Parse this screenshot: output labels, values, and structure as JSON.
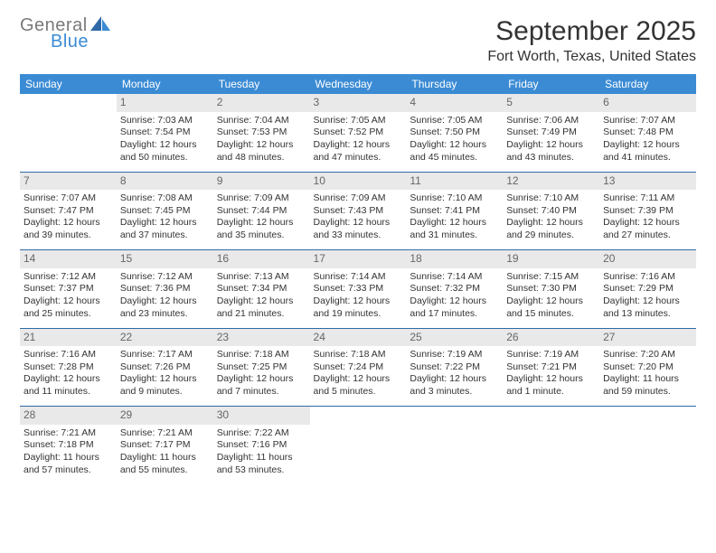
{
  "logo": {
    "text1": "General",
    "text2": "Blue"
  },
  "header": {
    "month_title": "September 2025",
    "location": "Fort Worth, Texas, United States"
  },
  "colors": {
    "header_bg": "#3b8bd4",
    "header_text": "#ffffff",
    "daynum_bg": "#e9e9e9",
    "daynum_text": "#666666",
    "text": "#333333",
    "sep": "#2f6aa8"
  },
  "fonts": {
    "title_size_pt": 22,
    "location_size_pt": 12,
    "cell_size_pt": 8
  },
  "day_labels": [
    "Sunday",
    "Monday",
    "Tuesday",
    "Wednesday",
    "Thursday",
    "Friday",
    "Saturday"
  ],
  "weeks": [
    [
      null,
      {
        "n": "1",
        "sr": "Sunrise: 7:03 AM",
        "ss": "Sunset: 7:54 PM",
        "d1": "Daylight: 12 hours",
        "d2": "and 50 minutes."
      },
      {
        "n": "2",
        "sr": "Sunrise: 7:04 AM",
        "ss": "Sunset: 7:53 PM",
        "d1": "Daylight: 12 hours",
        "d2": "and 48 minutes."
      },
      {
        "n": "3",
        "sr": "Sunrise: 7:05 AM",
        "ss": "Sunset: 7:52 PM",
        "d1": "Daylight: 12 hours",
        "d2": "and 47 minutes."
      },
      {
        "n": "4",
        "sr": "Sunrise: 7:05 AM",
        "ss": "Sunset: 7:50 PM",
        "d1": "Daylight: 12 hours",
        "d2": "and 45 minutes."
      },
      {
        "n": "5",
        "sr": "Sunrise: 7:06 AM",
        "ss": "Sunset: 7:49 PM",
        "d1": "Daylight: 12 hours",
        "d2": "and 43 minutes."
      },
      {
        "n": "6",
        "sr": "Sunrise: 7:07 AM",
        "ss": "Sunset: 7:48 PM",
        "d1": "Daylight: 12 hours",
        "d2": "and 41 minutes."
      }
    ],
    [
      {
        "n": "7",
        "sr": "Sunrise: 7:07 AM",
        "ss": "Sunset: 7:47 PM",
        "d1": "Daylight: 12 hours",
        "d2": "and 39 minutes."
      },
      {
        "n": "8",
        "sr": "Sunrise: 7:08 AM",
        "ss": "Sunset: 7:45 PM",
        "d1": "Daylight: 12 hours",
        "d2": "and 37 minutes."
      },
      {
        "n": "9",
        "sr": "Sunrise: 7:09 AM",
        "ss": "Sunset: 7:44 PM",
        "d1": "Daylight: 12 hours",
        "d2": "and 35 minutes."
      },
      {
        "n": "10",
        "sr": "Sunrise: 7:09 AM",
        "ss": "Sunset: 7:43 PM",
        "d1": "Daylight: 12 hours",
        "d2": "and 33 minutes."
      },
      {
        "n": "11",
        "sr": "Sunrise: 7:10 AM",
        "ss": "Sunset: 7:41 PM",
        "d1": "Daylight: 12 hours",
        "d2": "and 31 minutes."
      },
      {
        "n": "12",
        "sr": "Sunrise: 7:10 AM",
        "ss": "Sunset: 7:40 PM",
        "d1": "Daylight: 12 hours",
        "d2": "and 29 minutes."
      },
      {
        "n": "13",
        "sr": "Sunrise: 7:11 AM",
        "ss": "Sunset: 7:39 PM",
        "d1": "Daylight: 12 hours",
        "d2": "and 27 minutes."
      }
    ],
    [
      {
        "n": "14",
        "sr": "Sunrise: 7:12 AM",
        "ss": "Sunset: 7:37 PM",
        "d1": "Daylight: 12 hours",
        "d2": "and 25 minutes."
      },
      {
        "n": "15",
        "sr": "Sunrise: 7:12 AM",
        "ss": "Sunset: 7:36 PM",
        "d1": "Daylight: 12 hours",
        "d2": "and 23 minutes."
      },
      {
        "n": "16",
        "sr": "Sunrise: 7:13 AM",
        "ss": "Sunset: 7:34 PM",
        "d1": "Daylight: 12 hours",
        "d2": "and 21 minutes."
      },
      {
        "n": "17",
        "sr": "Sunrise: 7:14 AM",
        "ss": "Sunset: 7:33 PM",
        "d1": "Daylight: 12 hours",
        "d2": "and 19 minutes."
      },
      {
        "n": "18",
        "sr": "Sunrise: 7:14 AM",
        "ss": "Sunset: 7:32 PM",
        "d1": "Daylight: 12 hours",
        "d2": "and 17 minutes."
      },
      {
        "n": "19",
        "sr": "Sunrise: 7:15 AM",
        "ss": "Sunset: 7:30 PM",
        "d1": "Daylight: 12 hours",
        "d2": "and 15 minutes."
      },
      {
        "n": "20",
        "sr": "Sunrise: 7:16 AM",
        "ss": "Sunset: 7:29 PM",
        "d1": "Daylight: 12 hours",
        "d2": "and 13 minutes."
      }
    ],
    [
      {
        "n": "21",
        "sr": "Sunrise: 7:16 AM",
        "ss": "Sunset: 7:28 PM",
        "d1": "Daylight: 12 hours",
        "d2": "and 11 minutes."
      },
      {
        "n": "22",
        "sr": "Sunrise: 7:17 AM",
        "ss": "Sunset: 7:26 PM",
        "d1": "Daylight: 12 hours",
        "d2": "and 9 minutes."
      },
      {
        "n": "23",
        "sr": "Sunrise: 7:18 AM",
        "ss": "Sunset: 7:25 PM",
        "d1": "Daylight: 12 hours",
        "d2": "and 7 minutes."
      },
      {
        "n": "24",
        "sr": "Sunrise: 7:18 AM",
        "ss": "Sunset: 7:24 PM",
        "d1": "Daylight: 12 hours",
        "d2": "and 5 minutes."
      },
      {
        "n": "25",
        "sr": "Sunrise: 7:19 AM",
        "ss": "Sunset: 7:22 PM",
        "d1": "Daylight: 12 hours",
        "d2": "and 3 minutes."
      },
      {
        "n": "26",
        "sr": "Sunrise: 7:19 AM",
        "ss": "Sunset: 7:21 PM",
        "d1": "Daylight: 12 hours",
        "d2": "and 1 minute."
      },
      {
        "n": "27",
        "sr": "Sunrise: 7:20 AM",
        "ss": "Sunset: 7:20 PM",
        "d1": "Daylight: 11 hours",
        "d2": "and 59 minutes."
      }
    ],
    [
      {
        "n": "28",
        "sr": "Sunrise: 7:21 AM",
        "ss": "Sunset: 7:18 PM",
        "d1": "Daylight: 11 hours",
        "d2": "and 57 minutes."
      },
      {
        "n": "29",
        "sr": "Sunrise: 7:21 AM",
        "ss": "Sunset: 7:17 PM",
        "d1": "Daylight: 11 hours",
        "d2": "and 55 minutes."
      },
      {
        "n": "30",
        "sr": "Sunrise: 7:22 AM",
        "ss": "Sunset: 7:16 PM",
        "d1": "Daylight: 11 hours",
        "d2": "and 53 minutes."
      },
      null,
      null,
      null,
      null
    ]
  ]
}
